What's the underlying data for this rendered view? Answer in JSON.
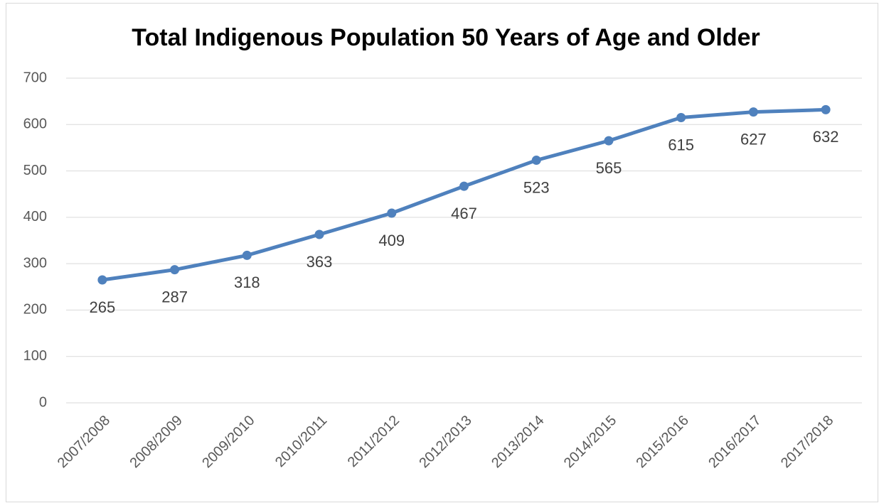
{
  "chart_data": {
    "type": "line",
    "title": "Total Indigenous Population 50 Years of Age and Older",
    "categories": [
      "2007/2008",
      "2008/2009",
      "2009/2010",
      "2010/2011",
      "2011/2012",
      "2012/2013",
      "2013/2014",
      "2014/2015",
      "2015/2016",
      "2016/2017",
      "2017/2018"
    ],
    "values": [
      265,
      287,
      318,
      363,
      409,
      467,
      523,
      565,
      615,
      627,
      632
    ],
    "color": "#4f81bd",
    "ylim": [
      0,
      700
    ],
    "yticks": [
      0,
      100,
      200,
      300,
      400,
      500,
      600,
      700
    ],
    "grid": true
  }
}
